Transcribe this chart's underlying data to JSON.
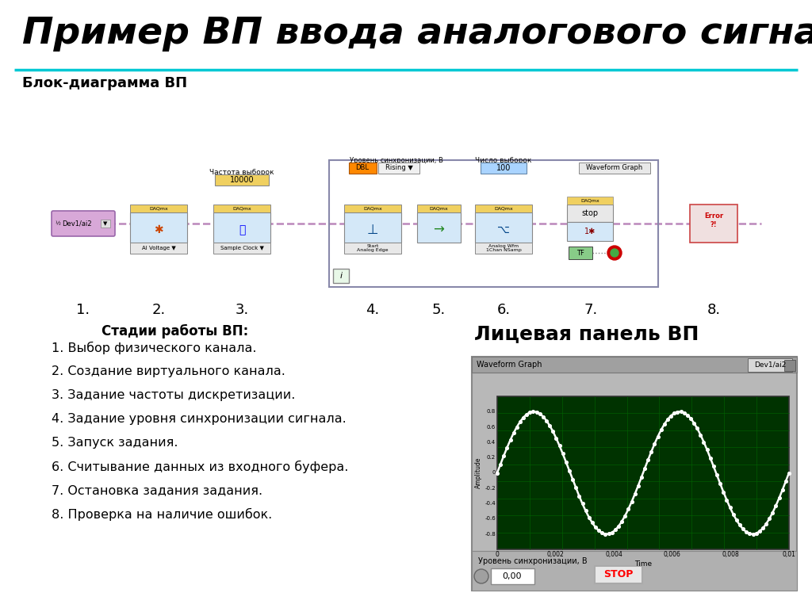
{
  "title": "Пример ВП ввода аналогового сигнала",
  "subtitle_block": "Блок-диаграмма ВП",
  "subtitle_panel": "Лицевая панель ВП",
  "stages_title": "    Стадии работы ВП:",
  "stages": [
    "1. Выбор физического канала.",
    "2. Создание виртуального канала.",
    "3. Задание частоты дискретизации.",
    "4. Задание уровня синхронизации сигнала.",
    "5. Запуск задания.",
    "6. Считывание данных из входного буфера.",
    "7. Остановка задания задания.",
    "8. Проверка на наличие ошибок."
  ],
  "numbers": [
    "1.",
    "2.",
    "3.",
    "4.",
    "5.",
    "6.",
    "7.",
    "8."
  ],
  "bg_color": "#ffffff",
  "title_color": "#000000",
  "cyan_line_color": "#00c8d4",
  "graph_bg": "#003300",
  "graph_grid": "#006600",
  "graph_line": "#ffffff",
  "panel_bg": "#c0c0c0",
  "waveform_title": "Waveform Graph",
  "waveform_device": "Dev1/ai2",
  "x_label": "Time",
  "y_label": "Amplitude",
  "sync_label": "Уровень синхронизации, В",
  "sync_value": "0,00",
  "stop_label": "STOP",
  "freq_label": "Частота выборок",
  "freq_value": "10000",
  "sync_top_label": "Уровень синхронизации, В",
  "dbl_label": "DBL",
  "rising_label": "Rising ▼",
  "nsamples_label": "Число выборок",
  "nsamples_value": "100",
  "wfg_label": "Waveform Graph",
  "ai_voltage_label": "AI Voltage ▼",
  "sample_clock_label": "Sample Clock ▼",
  "start_analog_label": "Start\nAnalog Edge",
  "analog_wfm_label": "Analog Wfm\n1Chan NSamp",
  "stop_btn_label": "stop",
  "tf_label": "TF",
  "error_label": "Error\n?!",
  "dev_label": "Dev1/ai2",
  "daqmx_label": "DAQmx"
}
